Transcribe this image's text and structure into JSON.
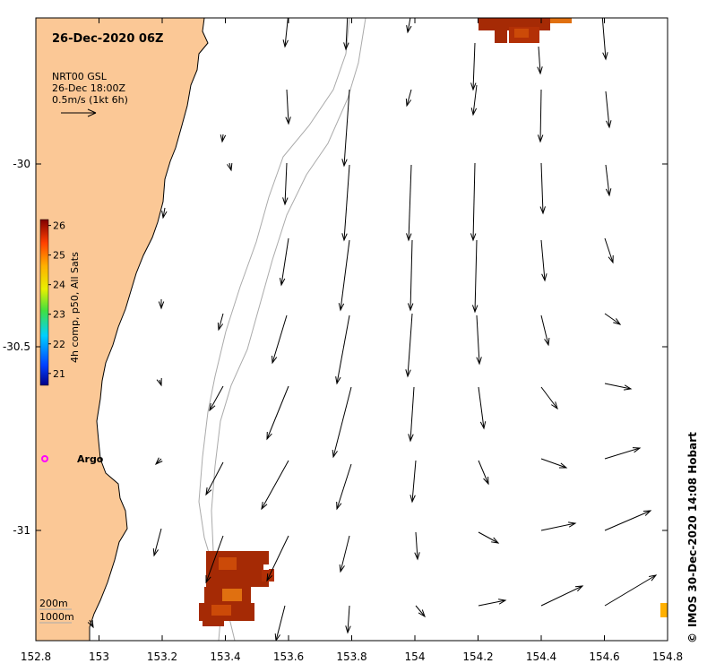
{
  "map_title": "26-Dec-2020 06Z",
  "current_legend": {
    "source": "NRT00 GSL",
    "time": "26-Dec 18:00Z",
    "scale": "0.5m/s (1kt 6h)"
  },
  "colorbar": {
    "label": "4h comp, p50, All Sats",
    "ticks": [
      "26",
      "25",
      "24",
      "23",
      "22",
      "21"
    ],
    "min": 20.6,
    "max": 26.2
  },
  "argo_label": "Argo",
  "contour_legend": [
    "200m",
    "1000m"
  ],
  "credit": "IMOS 30-Dec-2020 14:08 Hobart",
  "copyright_symbol": "©",
  "axes": {
    "x_ticks": [
      "152.8",
      "153",
      "153.2",
      "153.4",
      "153.6",
      "153.8",
      "154",
      "154.2",
      "154.4",
      "154.6",
      "154.8"
    ],
    "y_ticks": [
      "-30",
      "-30.5",
      "-31"
    ]
  },
  "colors": {
    "land": "#fbc896",
    "sst_dark": "#a52a05",
    "sst_mid": "#cc4a08",
    "sst_orange": "#e07010",
    "argo": "#ff00ff"
  }
}
